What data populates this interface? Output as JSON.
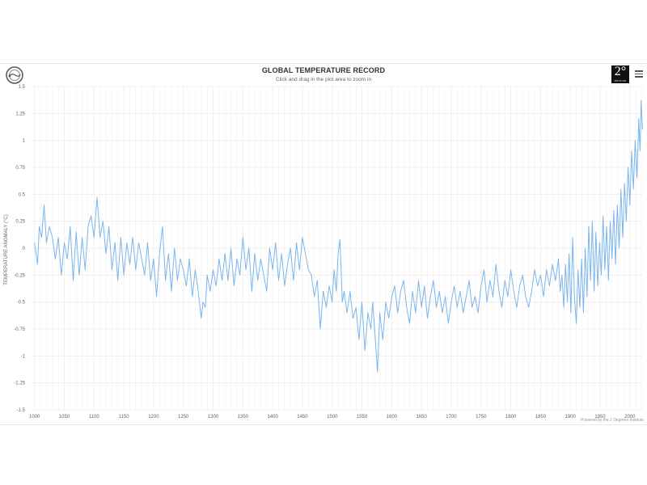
{
  "header": {
    "title": "GLOBAL TEMPERATURE RECORD",
    "subtitle": "Click and drag in the plot area to zoom in",
    "right_logo_text": "2°",
    "right_logo_small": "INSTITUTE",
    "left_logo_icon": "thermometer-circle-icon",
    "menu_icon": "hamburger-menu-icon"
  },
  "footer": {
    "credit": "Powered by the 2 Degrees Institute"
  },
  "colors": {
    "series": "#7cb5ec",
    "grid": "#ececec",
    "axis_text": "#666666"
  },
  "chart_data": {
    "type": "line",
    "title": "GLOBAL TEMPERATURE RECORD",
    "subtitle": "Click and drag in the plot area to zoom in",
    "xlabel": "",
    "ylabel": "TEMPERATURE ANOMALY (°C)",
    "xlim": [
      995,
      2022
    ],
    "ylim": [
      -1.5,
      1.5
    ],
    "x_ticks": [
      "1000",
      "1050",
      "1100",
      "1150",
      "1200",
      "1250",
      "1300",
      "1350",
      "1400",
      "1450",
      "1500",
      "1550",
      "1600",
      "1650",
      "1700",
      "1750",
      "1800",
      "1850",
      "1900",
      "1950",
      "2000"
    ],
    "y_ticks": [
      "1.5",
      "1.25",
      "1",
      "0.75",
      "0.5",
      "0.25",
      "0",
      "-0.25",
      "-0.5",
      "-0.75",
      "-1",
      "-1.25",
      "-1.5"
    ],
    "grid": true,
    "legend": "none",
    "series": [
      {
        "points": [
          [
            1000,
            0.05
          ],
          [
            1005,
            -0.15
          ],
          [
            1008,
            0.2
          ],
          [
            1012,
            0.1
          ],
          [
            1016,
            0.4
          ],
          [
            1020,
            0.05
          ],
          [
            1025,
            0.2
          ],
          [
            1030,
            0.1
          ],
          [
            1035,
            -0.1
          ],
          [
            1040,
            0.1
          ],
          [
            1045,
            -0.25
          ],
          [
            1050,
            0.05
          ],
          [
            1055,
            -0.1
          ],
          [
            1060,
            0.2
          ],
          [
            1065,
            -0.3
          ],
          [
            1070,
            0.15
          ],
          [
            1075,
            -0.25
          ],
          [
            1080,
            0.1
          ],
          [
            1085,
            -0.2
          ],
          [
            1090,
            0.2
          ],
          [
            1095,
            0.3
          ],
          [
            1100,
            0.1
          ],
          [
            1105,
            0.47
          ],
          [
            1110,
            0.1
          ],
          [
            1115,
            0.25
          ],
          [
            1120,
            -0.05
          ],
          [
            1125,
            0.2
          ],
          [
            1130,
            -0.2
          ],
          [
            1135,
            0.05
          ],
          [
            1140,
            -0.3
          ],
          [
            1145,
            0.1
          ],
          [
            1150,
            -0.25
          ],
          [
            1155,
            0.05
          ],
          [
            1160,
            -0.15
          ],
          [
            1165,
            0.1
          ],
          [
            1170,
            -0.2
          ],
          [
            1175,
            0.05
          ],
          [
            1180,
            -0.1
          ],
          [
            1185,
            -0.25
          ],
          [
            1190,
            0.05
          ],
          [
            1195,
            -0.3
          ],
          [
            1200,
            -0.1
          ],
          [
            1205,
            -0.45
          ],
          [
            1210,
            -0.05
          ],
          [
            1215,
            0.2
          ],
          [
            1220,
            -0.3
          ],
          [
            1225,
            -0.05
          ],
          [
            1230,
            -0.4
          ],
          [
            1235,
            0.0
          ],
          [
            1240,
            -0.3
          ],
          [
            1245,
            -0.1
          ],
          [
            1250,
            -0.2
          ],
          [
            1255,
            -0.35
          ],
          [
            1260,
            -0.1
          ],
          [
            1265,
            -0.45
          ],
          [
            1270,
            -0.2
          ],
          [
            1275,
            -0.4
          ],
          [
            1280,
            -0.65
          ],
          [
            1283,
            -0.5
          ],
          [
            1287,
            -0.55
          ],
          [
            1290,
            -0.25
          ],
          [
            1295,
            -0.4
          ],
          [
            1300,
            -0.2
          ],
          [
            1305,
            -0.35
          ],
          [
            1310,
            -0.1
          ],
          [
            1315,
            -0.3
          ],
          [
            1320,
            -0.05
          ],
          [
            1325,
            -0.3
          ],
          [
            1330,
            0.0
          ],
          [
            1335,
            -0.35
          ],
          [
            1340,
            -0.1
          ],
          [
            1345,
            -0.25
          ],
          [
            1350,
            0.1
          ],
          [
            1355,
            -0.2
          ],
          [
            1360,
            0.0
          ],
          [
            1365,
            -0.4
          ],
          [
            1370,
            -0.05
          ],
          [
            1375,
            -0.3
          ],
          [
            1380,
            -0.1
          ],
          [
            1385,
            -0.25
          ],
          [
            1390,
            -0.4
          ],
          [
            1395,
            0.0
          ],
          [
            1400,
            -0.2
          ],
          [
            1405,
            0.05
          ],
          [
            1410,
            -0.3
          ],
          [
            1415,
            -0.05
          ],
          [
            1420,
            -0.35
          ],
          [
            1425,
            -0.15
          ],
          [
            1430,
            0.0
          ],
          [
            1435,
            -0.3
          ],
          [
            1440,
            0.05
          ],
          [
            1445,
            -0.2
          ],
          [
            1450,
            0.1
          ],
          [
            1455,
            -0.05
          ],
          [
            1460,
            -0.2
          ],
          [
            1465,
            -0.25
          ],
          [
            1470,
            -0.45
          ],
          [
            1475,
            -0.3
          ],
          [
            1480,
            -0.75
          ],
          [
            1485,
            -0.4
          ],
          [
            1490,
            -0.55
          ],
          [
            1495,
            -0.35
          ],
          [
            1500,
            -0.5
          ],
          [
            1503,
            -0.2
          ],
          [
            1507,
            -0.4
          ],
          [
            1510,
            -0.05
          ],
          [
            1513,
            0.08
          ],
          [
            1517,
            -0.5
          ],
          [
            1520,
            -0.4
          ],
          [
            1525,
            -0.6
          ],
          [
            1530,
            -0.4
          ],
          [
            1535,
            -0.65
          ],
          [
            1540,
            -0.55
          ],
          [
            1545,
            -0.85
          ],
          [
            1550,
            -0.5
          ],
          [
            1555,
            -0.95
          ],
          [
            1560,
            -0.6
          ],
          [
            1565,
            -0.75
          ],
          [
            1568,
            -0.5
          ],
          [
            1572,
            -0.8
          ],
          [
            1576,
            -1.15
          ],
          [
            1580,
            -0.6
          ],
          [
            1585,
            -0.85
          ],
          [
            1590,
            -0.5
          ],
          [
            1595,
            -0.65
          ],
          [
            1600,
            -0.45
          ],
          [
            1605,
            -0.35
          ],
          [
            1610,
            -0.6
          ],
          [
            1615,
            -0.4
          ],
          [
            1620,
            -0.3
          ],
          [
            1625,
            -0.55
          ],
          [
            1630,
            -0.7
          ],
          [
            1635,
            -0.4
          ],
          [
            1640,
            -0.6
          ],
          [
            1645,
            -0.3
          ],
          [
            1650,
            -0.55
          ],
          [
            1655,
            -0.35
          ],
          [
            1660,
            -0.65
          ],
          [
            1665,
            -0.45
          ],
          [
            1670,
            -0.3
          ],
          [
            1675,
            -0.55
          ],
          [
            1680,
            -0.4
          ],
          [
            1685,
            -0.6
          ],
          [
            1690,
            -0.45
          ],
          [
            1695,
            -0.7
          ],
          [
            1700,
            -0.5
          ],
          [
            1705,
            -0.35
          ],
          [
            1710,
            -0.55
          ],
          [
            1715,
            -0.4
          ],
          [
            1720,
            -0.6
          ],
          [
            1725,
            -0.45
          ],
          [
            1730,
            -0.3
          ],
          [
            1735,
            -0.55
          ],
          [
            1740,
            -0.45
          ],
          [
            1745,
            -0.6
          ],
          [
            1750,
            -0.35
          ],
          [
            1755,
            -0.2
          ],
          [
            1760,
            -0.5
          ],
          [
            1765,
            -0.3
          ],
          [
            1770,
            -0.45
          ],
          [
            1775,
            -0.15
          ],
          [
            1780,
            -0.4
          ],
          [
            1785,
            -0.55
          ],
          [
            1790,
            -0.3
          ],
          [
            1795,
            -0.45
          ],
          [
            1800,
            -0.2
          ],
          [
            1805,
            -0.4
          ],
          [
            1810,
            -0.55
          ],
          [
            1815,
            -0.35
          ],
          [
            1820,
            -0.25
          ],
          [
            1825,
            -0.45
          ],
          [
            1830,
            -0.55
          ],
          [
            1835,
            -0.4
          ],
          [
            1840,
            -0.2
          ],
          [
            1845,
            -0.35
          ],
          [
            1850,
            -0.25
          ],
          [
            1855,
            -0.45
          ],
          [
            1860,
            -0.2
          ],
          [
            1865,
            -0.35
          ],
          [
            1870,
            -0.15
          ],
          [
            1875,
            -0.3
          ],
          [
            1880,
            -0.1
          ],
          [
            1883,
            -0.4
          ],
          [
            1886,
            -0.25
          ],
          [
            1889,
            -0.55
          ],
          [
            1892,
            -0.15
          ],
          [
            1895,
            -0.5
          ],
          [
            1898,
            -0.05
          ],
          [
            1901,
            -0.6
          ],
          [
            1904,
            0.1
          ],
          [
            1907,
            -0.45
          ],
          [
            1910,
            -0.7
          ],
          [
            1913,
            -0.2
          ],
          [
            1916,
            -0.55
          ],
          [
            1919,
            -0.1
          ],
          [
            1922,
            -0.6
          ],
          [
            1925,
            0.0
          ],
          [
            1928,
            -0.45
          ],
          [
            1931,
            0.2
          ],
          [
            1934,
            -0.3
          ],
          [
            1937,
            0.25
          ],
          [
            1940,
            -0.4
          ],
          [
            1943,
            0.15
          ],
          [
            1946,
            -0.35
          ],
          [
            1949,
            0.05
          ],
          [
            1952,
            -0.25
          ],
          [
            1955,
            0.3
          ],
          [
            1958,
            -0.2
          ],
          [
            1961,
            0.2
          ],
          [
            1964,
            -0.3
          ],
          [
            1967,
            0.25
          ],
          [
            1970,
            -0.1
          ],
          [
            1973,
            0.35
          ],
          [
            1976,
            -0.15
          ],
          [
            1979,
            0.4
          ],
          [
            1982,
            0.0
          ],
          [
            1985,
            0.55
          ],
          [
            1988,
            0.1
          ],
          [
            1991,
            0.6
          ],
          [
            1994,
            0.25
          ],
          [
            1997,
            0.75
          ],
          [
            2000,
            0.4
          ],
          [
            2003,
            0.9
          ],
          [
            2006,
            0.55
          ],
          [
            2009,
            1.0
          ],
          [
            2012,
            0.65
          ],
          [
            2015,
            1.2
          ],
          [
            2017,
            0.9
          ],
          [
            2019,
            1.37
          ],
          [
            2021,
            1.1
          ]
        ]
      }
    ]
  }
}
